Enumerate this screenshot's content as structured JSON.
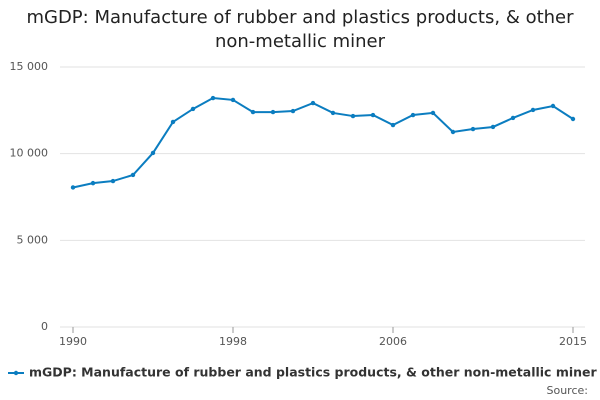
{
  "chart_data": {
    "type": "line",
    "title": "mGDP: Manufacture of rubber and plastics products, & other non-metallic miner",
    "x": [
      1990,
      1991,
      1992,
      1993,
      1994,
      1995,
      1996,
      1997,
      1998,
      1999,
      2000,
      2001,
      2002,
      2003,
      2004,
      2005,
      2006,
      2007,
      2008,
      2009,
      2010,
      2011,
      2012,
      2013,
      2014,
      2015
    ],
    "series": [
      {
        "name": "mGDP: Manufacture of rubber and plastics products, & other non-metallic miner",
        "color": "#0b7dc0",
        "values": [
          8050,
          8300,
          8420,
          8770,
          10040,
          11830,
          12580,
          13210,
          13100,
          12400,
          12400,
          12460,
          12920,
          12350,
          12170,
          12230,
          11650,
          12230,
          12350,
          11250,
          11420,
          11540,
          12060,
          12520,
          12750,
          12000
        ]
      }
    ],
    "xlim": [
      1990,
      2015
    ],
    "xticks": [
      1990,
      1998,
      2006,
      2015
    ],
    "ylim": [
      0,
      15000
    ],
    "yticks": [
      0,
      {
        "value": 5000,
        "label": "5 000"
      },
      {
        "value": 10000,
        "label": "10 000"
      },
      {
        "value": 15000,
        "label": "15 000"
      }
    ],
    "grid": true,
    "source_label": "Source:"
  }
}
